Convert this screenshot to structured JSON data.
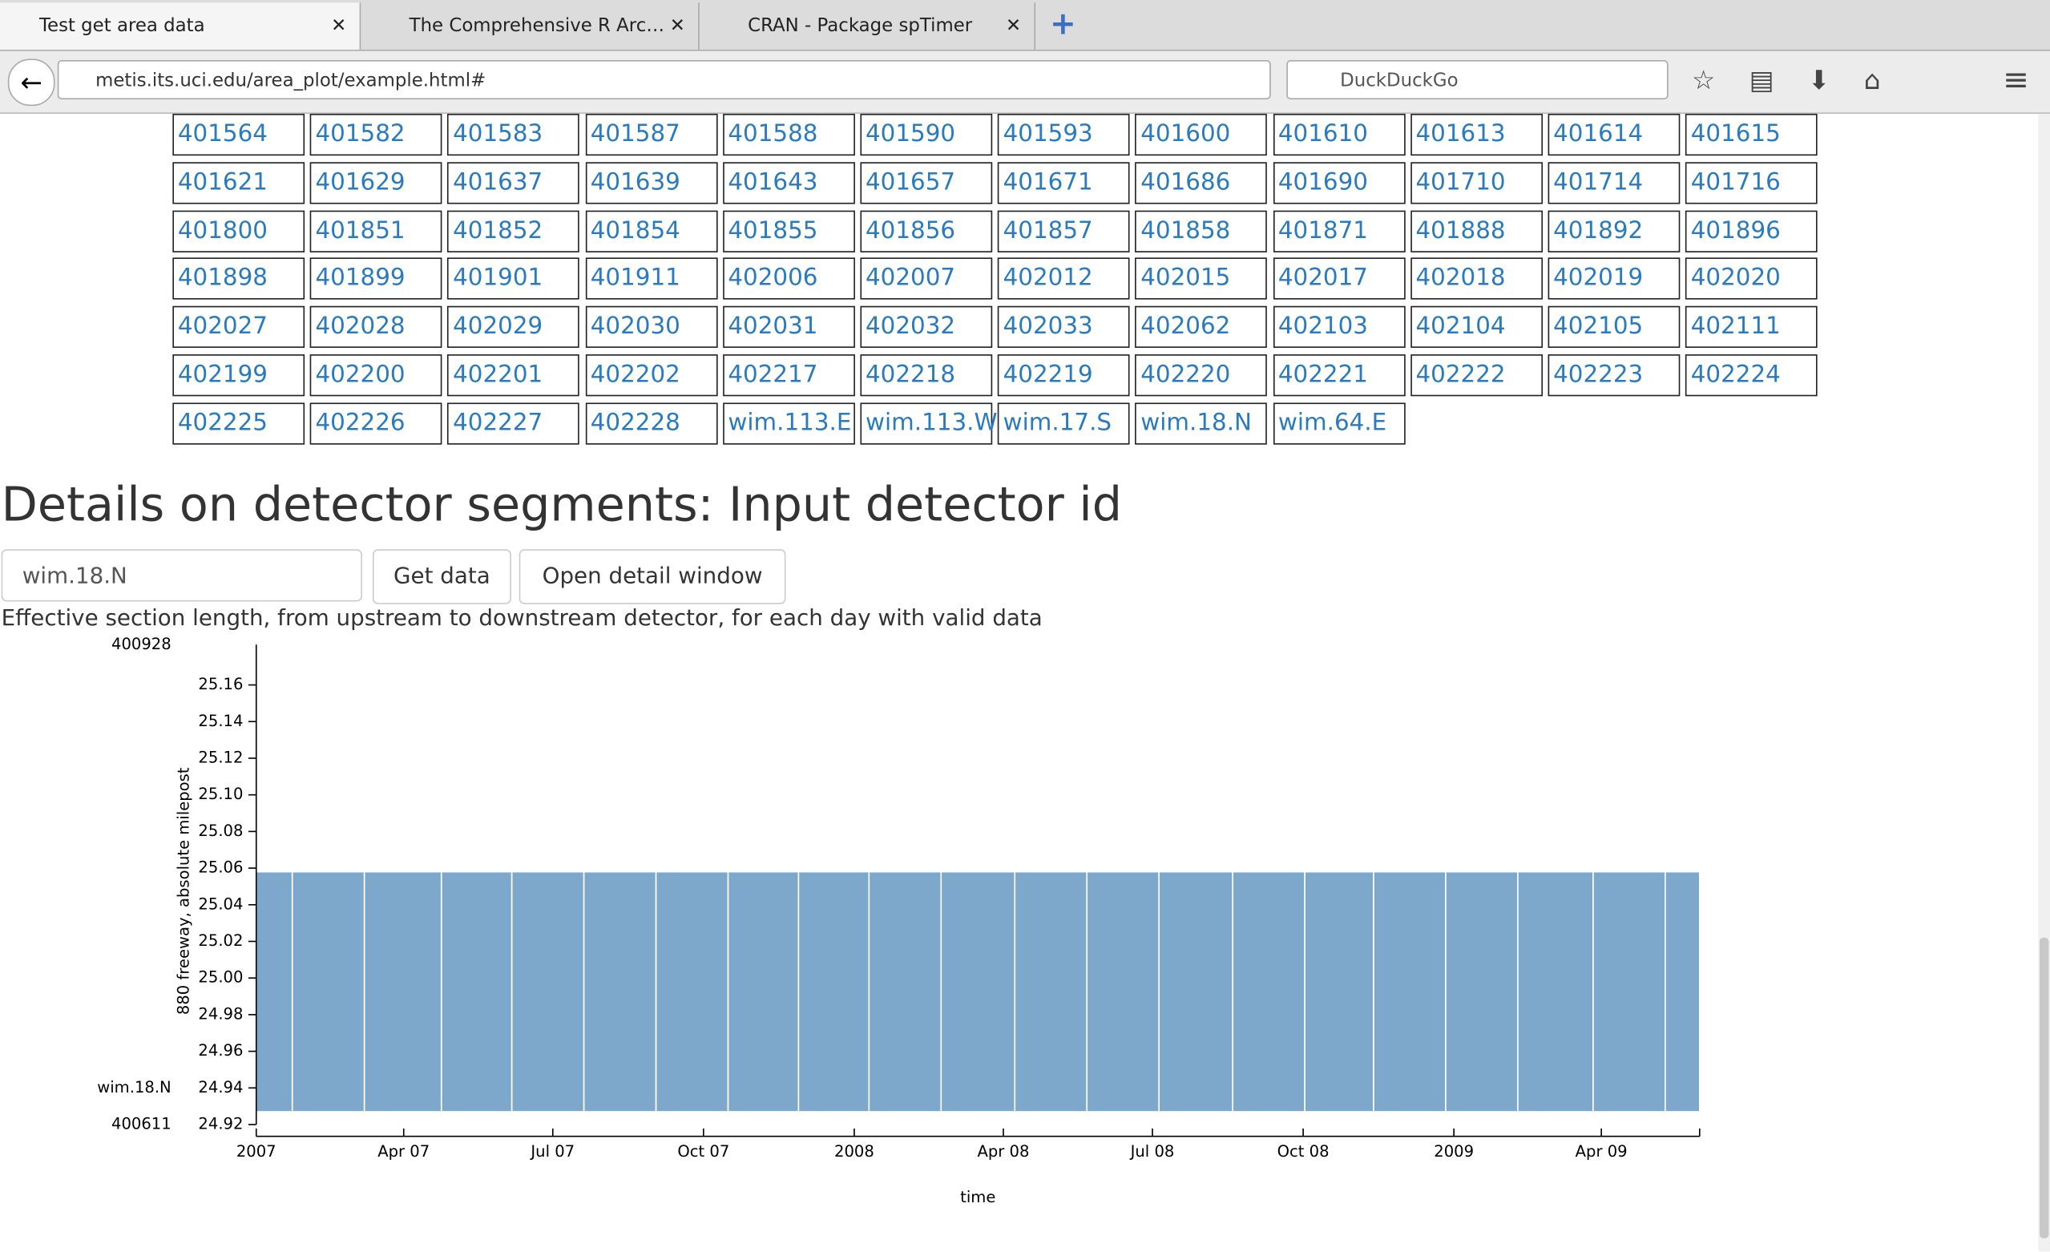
{
  "browser": {
    "tabs": [
      "Test get area data",
      "The Comprehensive R Arc…",
      "CRAN - Package spTimer"
    ],
    "url": "metis.its.uci.edu/area_plot/example.html#",
    "search": "DuckDuckGo"
  },
  "detector_ids": [
    "401564",
    "401582",
    "401583",
    "401587",
    "401588",
    "401590",
    "401593",
    "401600",
    "401610",
    "401613",
    "401614",
    "401615",
    "401621",
    "401629",
    "401637",
    "401639",
    "401643",
    "401657",
    "401671",
    "401686",
    "401690",
    "401710",
    "401714",
    "401716",
    "401800",
    "401851",
    "401852",
    "401854",
    "401855",
    "401856",
    "401857",
    "401858",
    "401871",
    "401888",
    "401892",
    "401896",
    "401898",
    "401899",
    "401901",
    "401911",
    "402006",
    "402007",
    "402012",
    "402015",
    "402017",
    "402018",
    "402019",
    "402020",
    "402027",
    "402028",
    "402029",
    "402030",
    "402031",
    "402032",
    "402033",
    "402062",
    "402103",
    "402104",
    "402105",
    "402111",
    "402199",
    "402200",
    "402201",
    "402202",
    "402217",
    "402218",
    "402219",
    "402220",
    "402221",
    "402222",
    "402223",
    "402224",
    "402225",
    "402226",
    "402227",
    "402228",
    "wim.113.E",
    "wim.113.W",
    "wim.17.S",
    "wim.18.N",
    "wim.64.E"
  ],
  "details": {
    "heading": "Details on detector segments: Input detector id",
    "input_value": "wim.18.N",
    "buttons": [
      "Get data",
      "Open detail window"
    ],
    "description": "Effective section length, from upstream to downstream detector, for each day with valid data"
  },
  "chart_data": {
    "type": "range-area",
    "x_label": "time",
    "y_label": "880 freeway, absolute milepost",
    "color": "#7da7cb",
    "xlim": [
      "2007-01-01",
      "2009-05-31"
    ],
    "xticks": [
      {
        "value": "2007-01-01",
        "label": "2007"
      },
      {
        "value": "2007-04-01",
        "label": "Apr 07"
      },
      {
        "value": "2007-07-01",
        "label": "Jul 07"
      },
      {
        "value": "2007-10-01",
        "label": "Oct 07"
      },
      {
        "value": "2008-01-01",
        "label": "2008"
      },
      {
        "value": "2008-04-01",
        "label": "Apr 08"
      },
      {
        "value": "2008-07-01",
        "label": "Jul 08"
      },
      {
        "value": "2008-10-01",
        "label": "Oct 08"
      },
      {
        "value": "2009-01-01",
        "label": "2009"
      },
      {
        "value": "2009-04-01",
        "label": "Apr 09"
      }
    ],
    "ylim": [
      24.92,
      25.182
    ],
    "yticks": [
      24.92,
      24.94,
      24.96,
      24.98,
      {
        "value": 25,
        "label": "25.00"
      },
      25.02,
      25.04,
      25.06,
      25.08,
      {
        "value": 25.1,
        "label": "25.10"
      },
      25.12,
      25.14,
      25.16
    ],
    "detector_labels": [
      {
        "value": 25.182,
        "label": "400928"
      },
      {
        "value": 24.94,
        "label": "wim.18.N"
      },
      {
        "value": 24.92,
        "label": "400611"
      }
    ],
    "segments": [
      {
        "start": "2007-01-01",
        "end": "2007-01-23",
        "low": 24.927,
        "high": 25.058
      },
      {
        "start": "2007-01-23",
        "end": "2007-03-08",
        "low": 24.927,
        "high": 25.058
      },
      {
        "start": "2007-03-08",
        "end": "2007-04-24",
        "low": 24.927,
        "high": 25.058
      },
      {
        "start": "2007-04-24",
        "end": "2007-06-06",
        "low": 24.927,
        "high": 25.058
      },
      {
        "start": "2007-06-06",
        "end": "2007-07-20",
        "low": 24.927,
        "high": 25.058
      },
      {
        "start": "2007-07-20",
        "end": "2007-09-02",
        "low": 24.927,
        "high": 25.058
      },
      {
        "start": "2007-09-02",
        "end": "2007-10-16",
        "low": 24.927,
        "high": 25.058
      },
      {
        "start": "2007-10-16",
        "end": "2007-11-28",
        "low": 24.927,
        "high": 25.058
      },
      {
        "start": "2007-11-28",
        "end": "2008-01-10",
        "low": 24.927,
        "high": 25.058
      },
      {
        "start": "2008-01-10",
        "end": "2008-02-23",
        "low": 24.927,
        "high": 25.058
      },
      {
        "start": "2008-02-23",
        "end": "2008-04-08",
        "low": 24.927,
        "high": 25.058
      },
      {
        "start": "2008-04-08",
        "end": "2008-05-22",
        "low": 24.927,
        "high": 25.058
      },
      {
        "start": "2008-05-22",
        "end": "2008-07-05",
        "low": 24.927,
        "high": 25.058
      },
      {
        "start": "2008-07-05",
        "end": "2008-08-19",
        "low": 24.927,
        "high": 25.058
      },
      {
        "start": "2008-08-19",
        "end": "2008-10-02",
        "low": 24.927,
        "high": 25.058
      },
      {
        "start": "2008-10-02",
        "end": "2008-11-13",
        "low": 24.927,
        "high": 25.058
      },
      {
        "start": "2008-11-13",
        "end": "2008-12-27",
        "low": 24.927,
        "high": 25.058
      },
      {
        "start": "2008-12-27",
        "end": "2009-02-09",
        "low": 24.927,
        "high": 25.058
      },
      {
        "start": "2009-02-09",
        "end": "2009-03-27",
        "low": 24.927,
        "high": 25.058
      },
      {
        "start": "2009-03-27",
        "end": "2009-05-10",
        "low": 24.927,
        "high": 25.058
      },
      {
        "start": "2009-05-10",
        "end": "2009-05-31",
        "low": 24.927,
        "high": 25.058
      }
    ]
  }
}
